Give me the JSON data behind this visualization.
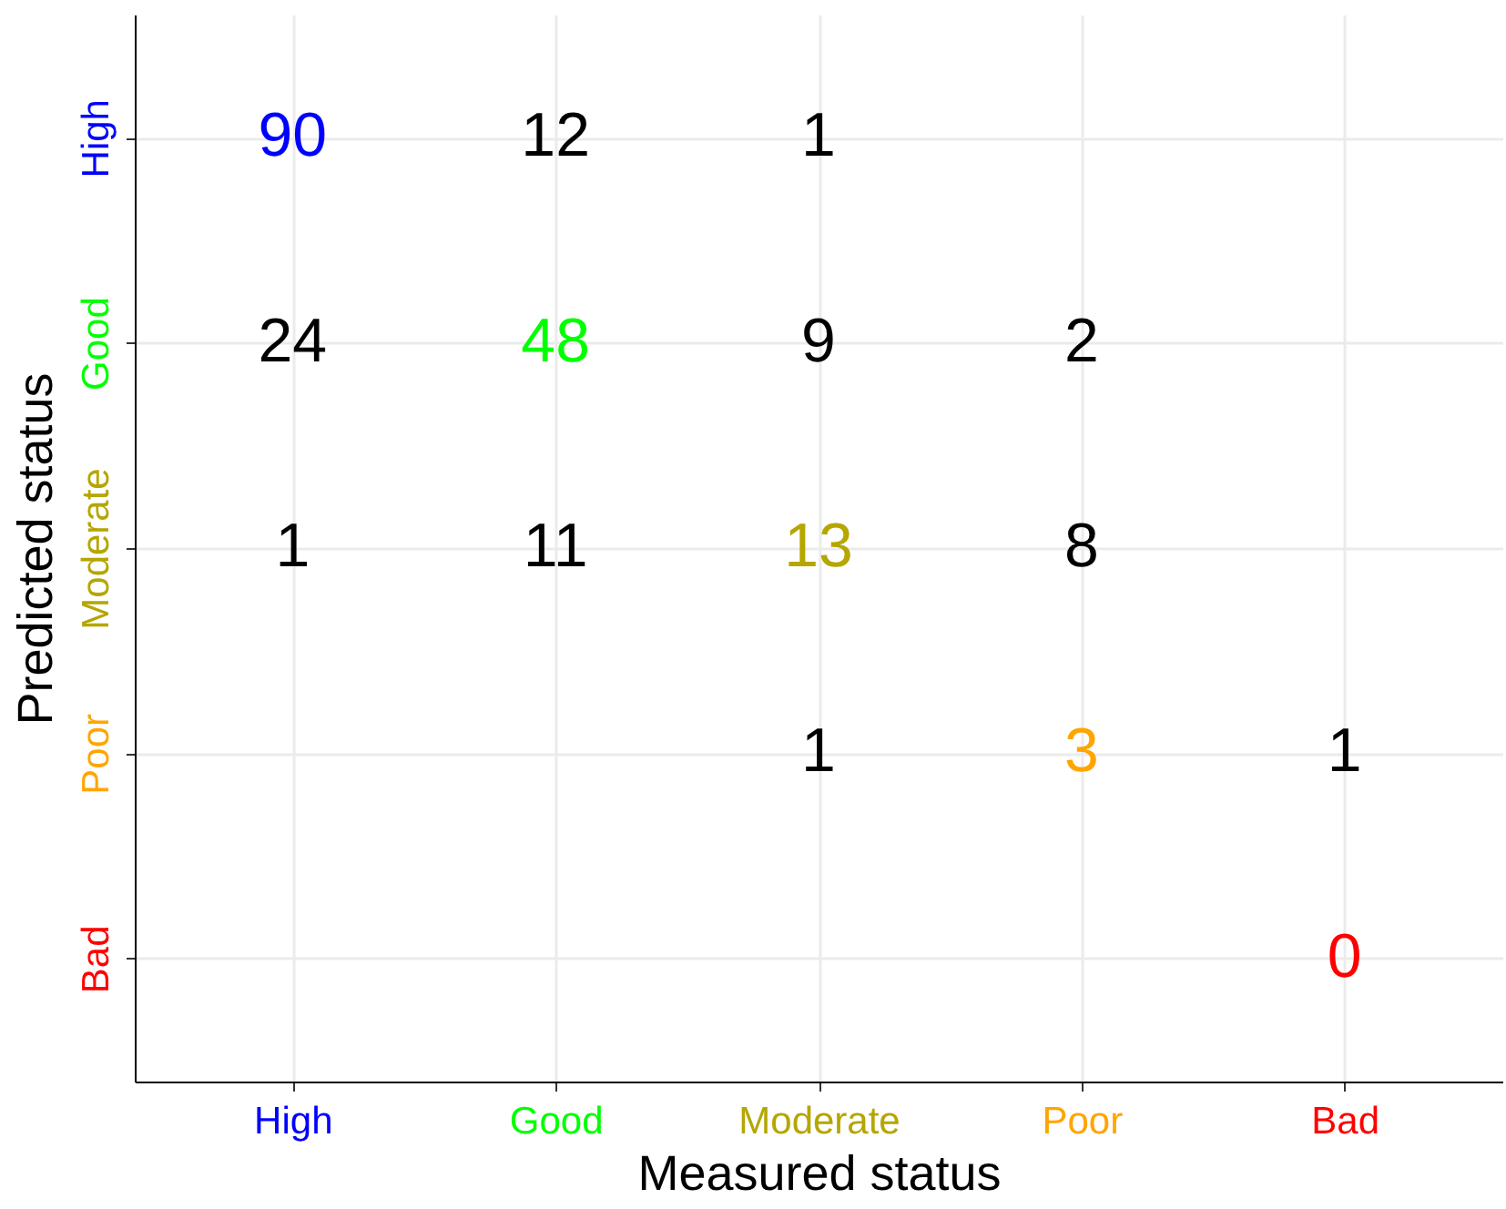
{
  "chart_data": {
    "type": "heatmap",
    "xlabel": "Measured status",
    "ylabel": "Predicted status",
    "categories": [
      "High",
      "Good",
      "Moderate",
      "Poor",
      "Bad"
    ],
    "y_categories": [
      "High",
      "Good",
      "Moderate",
      "Poor",
      "Bad"
    ],
    "colors": [
      "#0000ff",
      "#00ff00",
      "#b5a600",
      "#ffa500",
      "#ff0000"
    ],
    "cells": [
      [
        90,
        12,
        1,
        null,
        null
      ],
      [
        24,
        48,
        9,
        2,
        null
      ],
      [
        1,
        11,
        13,
        8,
        null
      ],
      [
        null,
        null,
        1,
        3,
        1
      ],
      [
        null,
        null,
        null,
        null,
        0
      ]
    ],
    "data_labels": true,
    "grid": true
  }
}
